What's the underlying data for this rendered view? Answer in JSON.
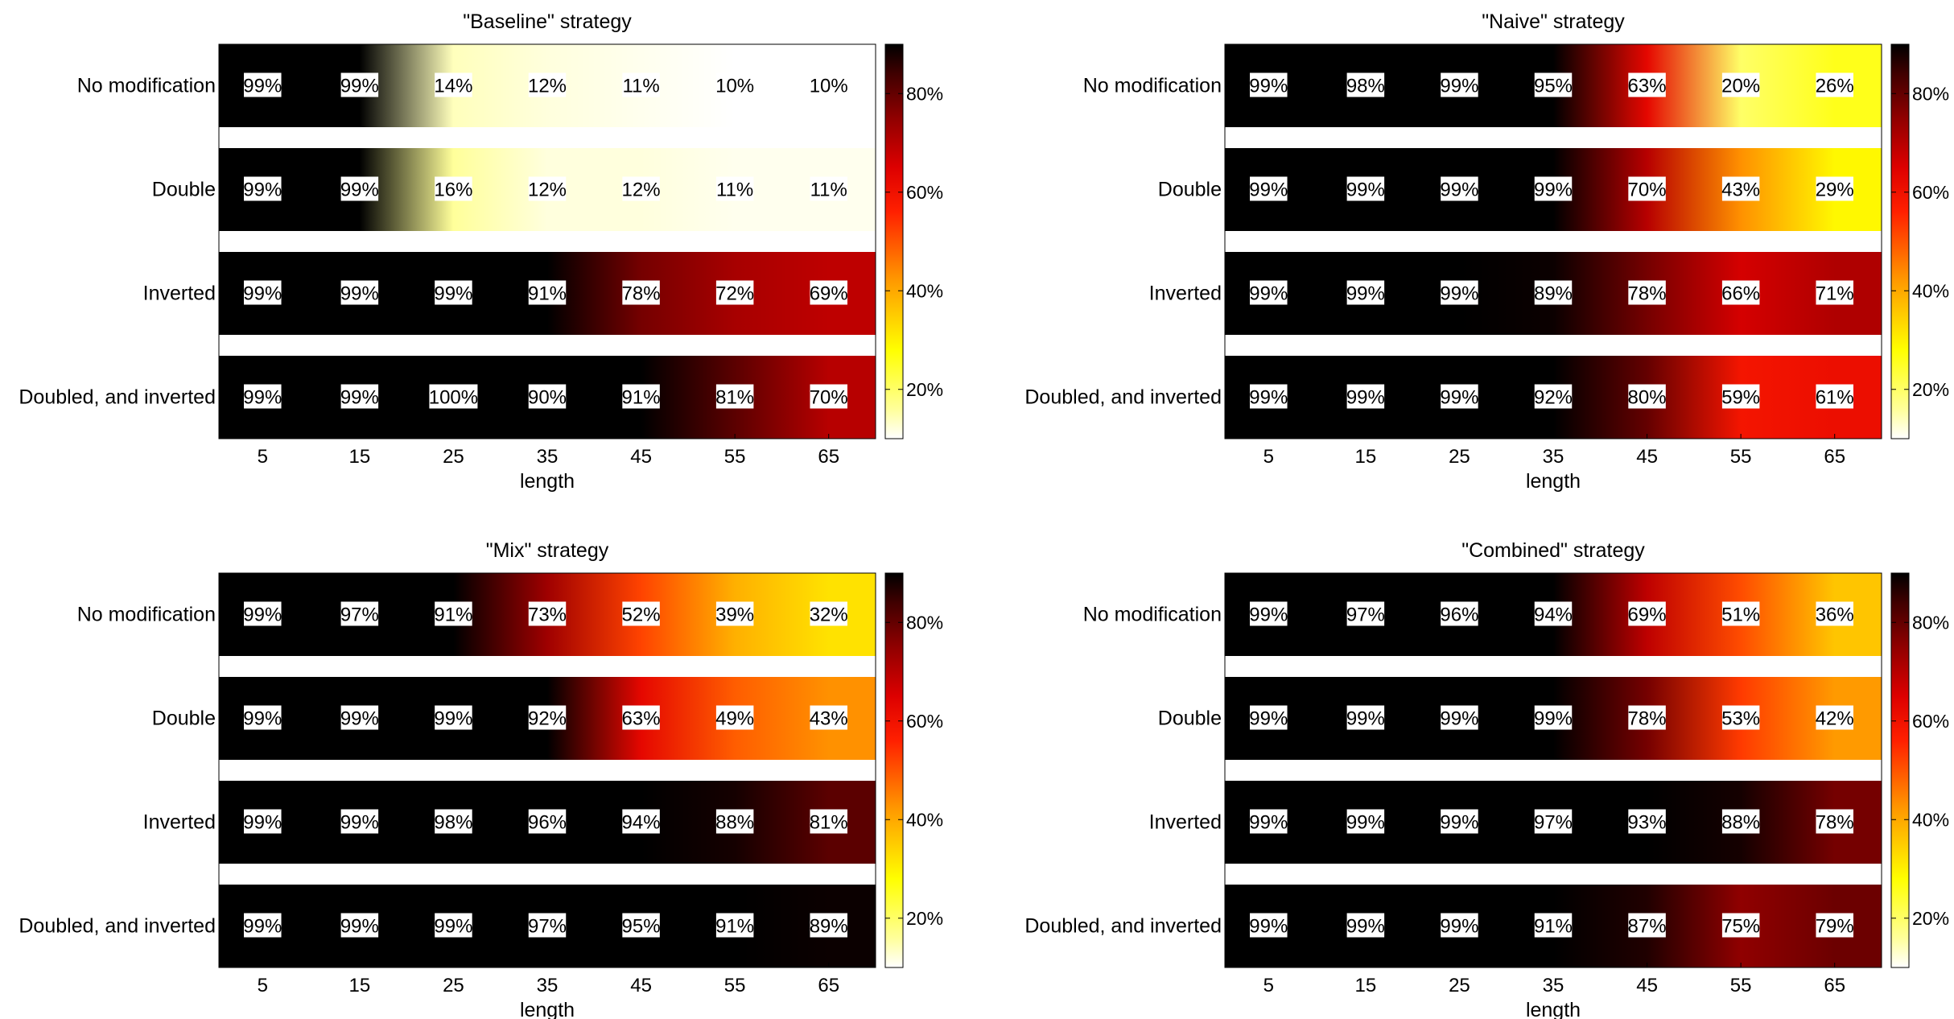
{
  "chart_data": [
    {
      "type": "heatmap",
      "title": "\"Baseline\" strategy",
      "xlabel": "length",
      "x": [
        5,
        15,
        25,
        35,
        45,
        55,
        65
      ],
      "rows": [
        "No modification",
        "Double",
        "Inverted",
        "Doubled, and inverted"
      ],
      "values": [
        [
          99,
          99,
          14,
          12,
          11,
          10,
          10
        ],
        [
          99,
          99,
          16,
          12,
          12,
          11,
          11
        ],
        [
          99,
          99,
          99,
          91,
          78,
          72,
          69
        ],
        [
          99,
          99,
          100,
          90,
          91,
          81,
          70
        ]
      ],
      "value_suffix": "%",
      "colorbar_ticks": [
        "20%",
        "40%",
        "60%",
        "80%"
      ]
    },
    {
      "type": "heatmap",
      "title": "\"Naive\" strategy",
      "xlabel": "length",
      "x": [
        5,
        15,
        25,
        35,
        45,
        55,
        65
      ],
      "rows": [
        "No modification",
        "Double",
        "Inverted",
        "Doubled, and inverted"
      ],
      "values": [
        [
          99,
          98,
          99,
          95,
          63,
          20,
          26
        ],
        [
          99,
          99,
          99,
          99,
          70,
          43,
          29
        ],
        [
          99,
          99,
          99,
          89,
          78,
          66,
          71
        ],
        [
          99,
          99,
          99,
          92,
          80,
          59,
          61
        ]
      ],
      "value_suffix": "%",
      "colorbar_ticks": [
        "20%",
        "40%",
        "60%",
        "80%"
      ]
    },
    {
      "type": "heatmap",
      "title": "\"Mix\" strategy",
      "xlabel": "length",
      "x": [
        5,
        15,
        25,
        35,
        45,
        55,
        65
      ],
      "rows": [
        "No modification",
        "Double",
        "Inverted",
        "Doubled, and inverted"
      ],
      "values": [
        [
          99,
          97,
          91,
          73,
          52,
          39,
          32
        ],
        [
          99,
          99,
          99,
          92,
          63,
          49,
          43
        ],
        [
          99,
          99,
          98,
          96,
          94,
          88,
          81
        ],
        [
          99,
          99,
          99,
          97,
          95,
          91,
          89
        ]
      ],
      "value_suffix": "%",
      "colorbar_ticks": [
        "20%",
        "40%",
        "60%",
        "80%"
      ]
    },
    {
      "type": "heatmap",
      "title": "\"Combined\" strategy",
      "xlabel": "length",
      "x": [
        5,
        15,
        25,
        35,
        45,
        55,
        65
      ],
      "rows": [
        "No modification",
        "Double",
        "Inverted",
        "Doubled, and inverted"
      ],
      "values": [
        [
          99,
          97,
          96,
          94,
          69,
          51,
          36
        ],
        [
          99,
          99,
          99,
          99,
          78,
          53,
          42
        ],
        [
          99,
          99,
          99,
          97,
          93,
          88,
          78
        ],
        [
          99,
          99,
          99,
          91,
          87,
          75,
          79
        ]
      ],
      "value_suffix": "%",
      "colorbar_ticks": [
        "20%",
        "40%",
        "60%",
        "80%"
      ]
    }
  ],
  "colorscale": {
    "range": [
      10,
      90
    ],
    "stops": [
      {
        "v": 10,
        "color": "#ffffff"
      },
      {
        "v": 16,
        "color": "#ffff9a"
      },
      {
        "v": 28,
        "color": "#ffff00"
      },
      {
        "v": 42,
        "color": "#ff9a00"
      },
      {
        "v": 56,
        "color": "#ff2000"
      },
      {
        "v": 65,
        "color": "#dd0000"
      },
      {
        "v": 75,
        "color": "#900000"
      },
      {
        "v": 84,
        "color": "#400000"
      },
      {
        "v": 90,
        "color": "#000000"
      }
    ]
  }
}
